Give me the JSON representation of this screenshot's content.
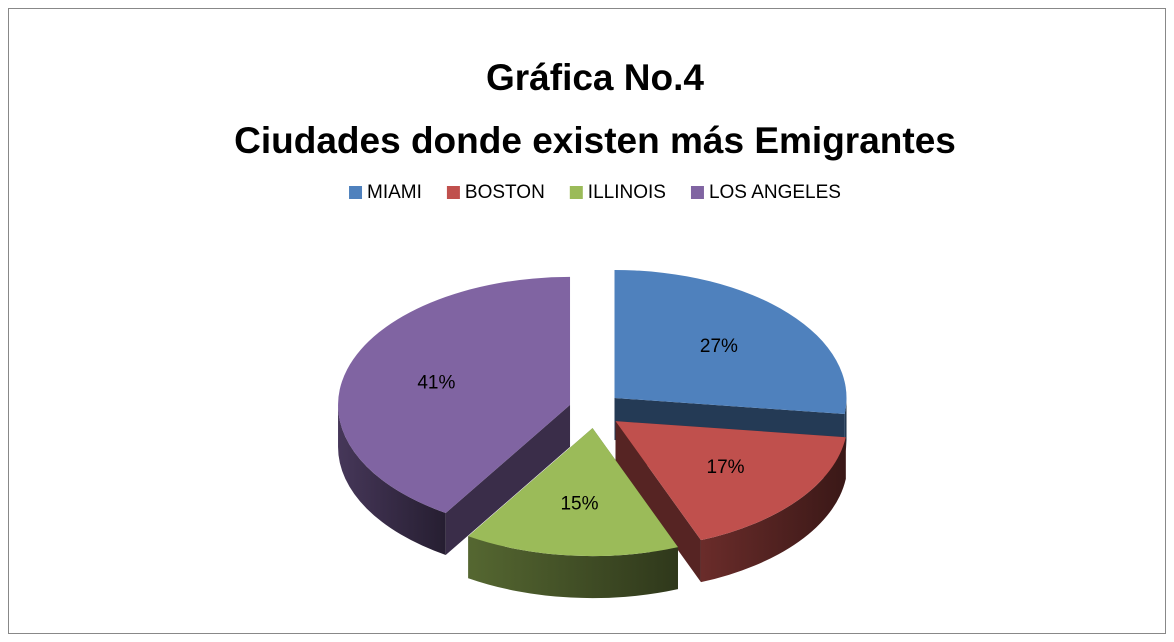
{
  "chart_data": {
    "type": "pie",
    "title": "Gráfica No.4",
    "subtitle": "Ciudades donde existen más Emigrantes",
    "categories": [
      "MIAMI",
      "BOSTON",
      "ILLINOIS",
      "LOS ANGELES"
    ],
    "values": [
      27,
      17,
      15,
      41
    ],
    "value_labels": [
      "27%",
      "17%",
      "15%",
      "41%"
    ],
    "colors": [
      "#4f81bd",
      "#c0504d",
      "#9bbb59",
      "#8064a2"
    ],
    "legend": "top",
    "exploded": true,
    "three_d": true
  }
}
